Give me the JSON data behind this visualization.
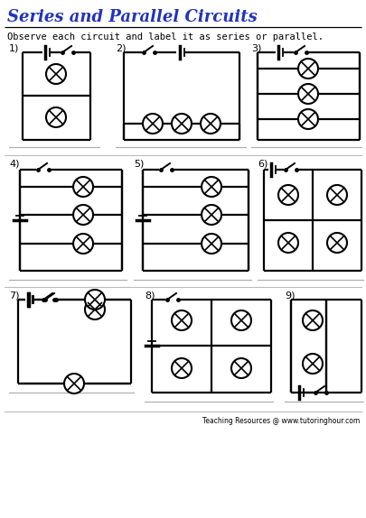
{
  "title": "Series and Parallel Circuits",
  "subtitle": "Observe each circuit and label it as series or parallel.",
  "footer": "Teaching Resources @ www.tutoringhour.com",
  "title_color": "#2233bb",
  "bg_color": "#ffffff"
}
